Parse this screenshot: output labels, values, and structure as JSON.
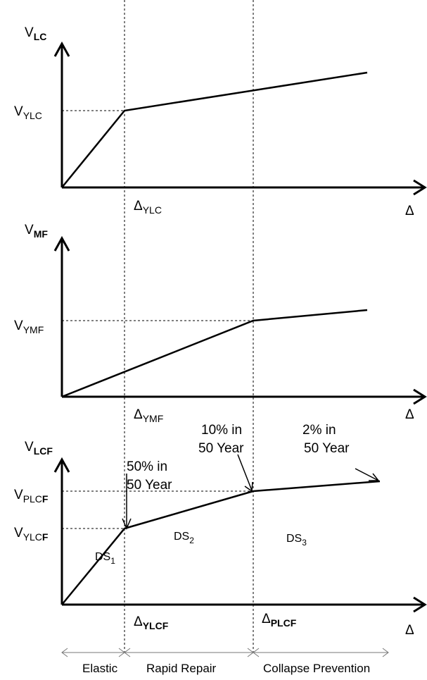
{
  "panels": [
    {
      "y_axis_label": {
        "main": "V",
        "sub": "LC"
      },
      "yield_label": {
        "main": "V",
        "sub": "YLC"
      },
      "x_tick_label": {
        "main": "Δ",
        "sub": "YLC"
      },
      "x_axis_label": "Δ"
    },
    {
      "y_axis_label": {
        "main": "V",
        "sub": "MF"
      },
      "yield_label": {
        "main": "V",
        "sub": "YMF"
      },
      "x_tick_label": {
        "main": "Δ",
        "sub": "YMF"
      },
      "x_axis_label": "Δ"
    },
    {
      "y_axis_label": {
        "main": "V",
        "sub": "LCF"
      },
      "yield_label": {
        "main": "V",
        "sub": "YLC",
        "sub_bold": "F"
      },
      "plastic_label": {
        "main": "V",
        "sub": "PLC",
        "sub_bold": "F"
      },
      "x_tick_label": {
        "main": "Δ",
        "sub": "YLCF"
      },
      "x_tick_label_2": {
        "main": "Δ",
        "sub": "PLCF"
      },
      "x_axis_label": "Δ"
    }
  ],
  "annotations": [
    [
      "50% in",
      "50 Year"
    ],
    [
      "10% in",
      "50 Year"
    ],
    [
      "2% in",
      "50 Year"
    ]
  ],
  "damage_states": [
    {
      "main": "DS",
      "sub": "1"
    },
    {
      "main": "DS",
      "sub": "2"
    },
    {
      "main": "DS",
      "sub": "3"
    }
  ],
  "performance_levels": [
    "Elastic",
    "Rapid Repair",
    "Collapse Prevention"
  ]
}
